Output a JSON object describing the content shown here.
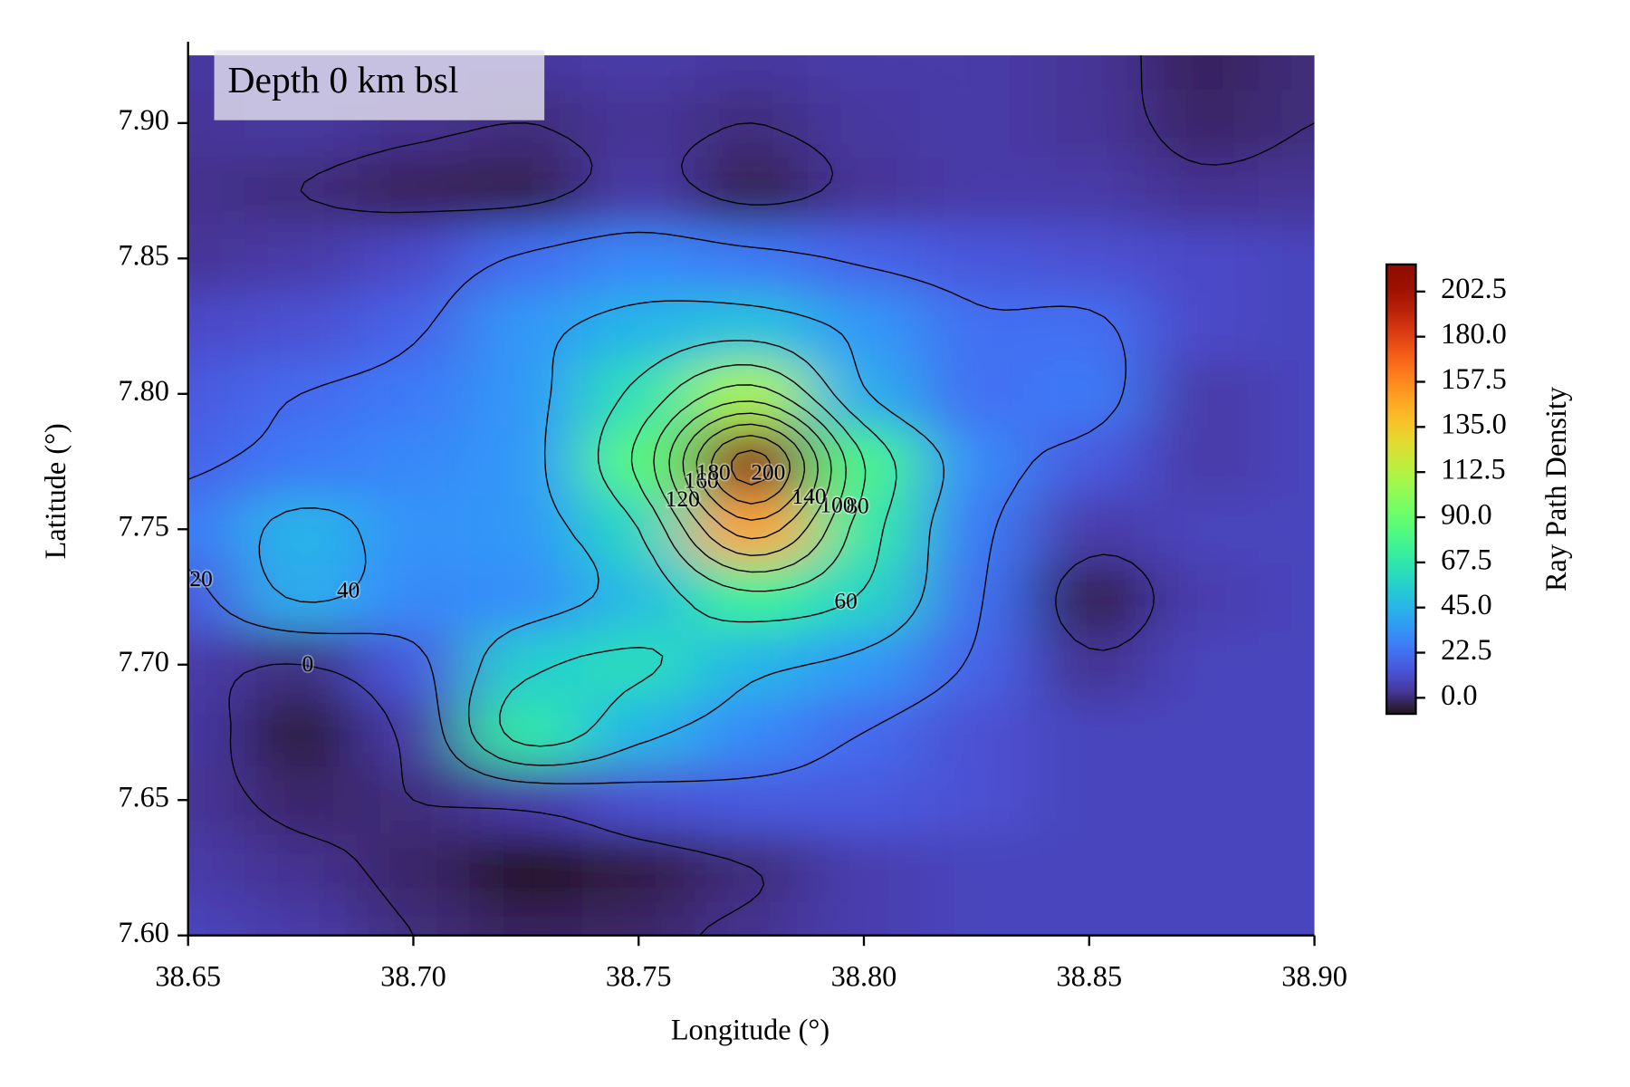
{
  "chart_data": {
    "type": "contour",
    "annotation": "Depth 0 km bsl",
    "x_label": "Longitude (°)",
    "y_label": "Latitude (°)",
    "colorbar_label": "Ray Path Density",
    "colormap": "turbo",
    "contour_color": "#000000",
    "x": [
      38.65,
      38.675,
      38.7,
      38.725,
      38.75,
      38.775,
      38.8,
      38.825,
      38.85,
      38.875,
      38.9
    ],
    "y": [
      7.6,
      7.625,
      7.65,
      7.675,
      7.7,
      7.725,
      7.75,
      7.775,
      7.8,
      7.825,
      7.85,
      7.875,
      7.9,
      7.925
    ],
    "z": [
      [
        8,
        5,
        0,
        -3,
        -2,
        2,
        6,
        8,
        8,
        8,
        8
      ],
      [
        5,
        2,
        -2,
        -8,
        -5,
        0,
        6,
        8,
        8,
        8,
        8
      ],
      [
        3,
        -2,
        0,
        5,
        12,
        15,
        15,
        12,
        8,
        8,
        8
      ],
      [
        4,
        -6,
        5,
        68,
        45,
        30,
        20,
        12,
        8,
        8,
        8
      ],
      [
        5,
        0,
        15,
        55,
        62,
        45,
        35,
        18,
        2,
        8,
        8
      ],
      [
        15,
        42,
        30,
        32,
        48,
        75,
        58,
        22,
        -5,
        6,
        8
      ],
      [
        25,
        45,
        33,
        35,
        60,
        150,
        70,
        25,
        5,
        8,
        8
      ],
      [
        18,
        25,
        30,
        35,
        85,
        208,
        80,
        30,
        15,
        5,
        8
      ],
      [
        15,
        20,
        25,
        35,
        65,
        110,
        42,
        22,
        25,
        5,
        8
      ],
      [
        10,
        12,
        18,
        35,
        45,
        50,
        35,
        22,
        22,
        10,
        8
      ],
      [
        3,
        5,
        10,
        22,
        30,
        25,
        18,
        14,
        12,
        10,
        8
      ],
      [
        2,
        0,
        -3,
        -4,
        5,
        -4,
        3,
        5,
        5,
        2,
        3
      ],
      [
        3,
        4,
        2,
        0,
        3,
        0,
        4,
        5,
        3,
        -2,
        0
      ],
      [
        4,
        5,
        5,
        4,
        5,
        4,
        5,
        5,
        3,
        -3,
        0
      ]
    ],
    "levels": [
      0,
      20,
      40,
      60,
      80,
      100,
      120,
      140,
      160,
      180,
      200
    ],
    "xlim": [
      38.65,
      38.9
    ],
    "ylim": [
      7.6,
      7.93
    ],
    "xticks": [
      38.65,
      {
        "value": 38.7,
        "label": "38.70"
      },
      38.75,
      {
        "value": 38.8,
        "label": "38.80"
      },
      38.85,
      {
        "value": 38.9,
        "label": "38.90"
      }
    ],
    "yticks": [
      {
        "value": 7.6,
        "label": "7.60"
      },
      7.65,
      {
        "value": 7.7,
        "label": "7.70"
      },
      7.75,
      {
        "value": 7.8,
        "label": "7.80"
      },
      7.85,
      {
        "value": 7.9,
        "label": "7.90"
      }
    ],
    "clim": [
      -8,
      216
    ],
    "cticks": [
      {
        "value": 0,
        "label": "0.0"
      },
      22.5,
      {
        "value": 45,
        "label": "45.0"
      },
      67.5,
      {
        "value": 90,
        "label": "90.0"
      },
      112.5,
      {
        "value": 135,
        "label": "135.0"
      },
      157.5,
      {
        "value": 180,
        "label": "180.0"
      },
      202.5
    ]
  }
}
